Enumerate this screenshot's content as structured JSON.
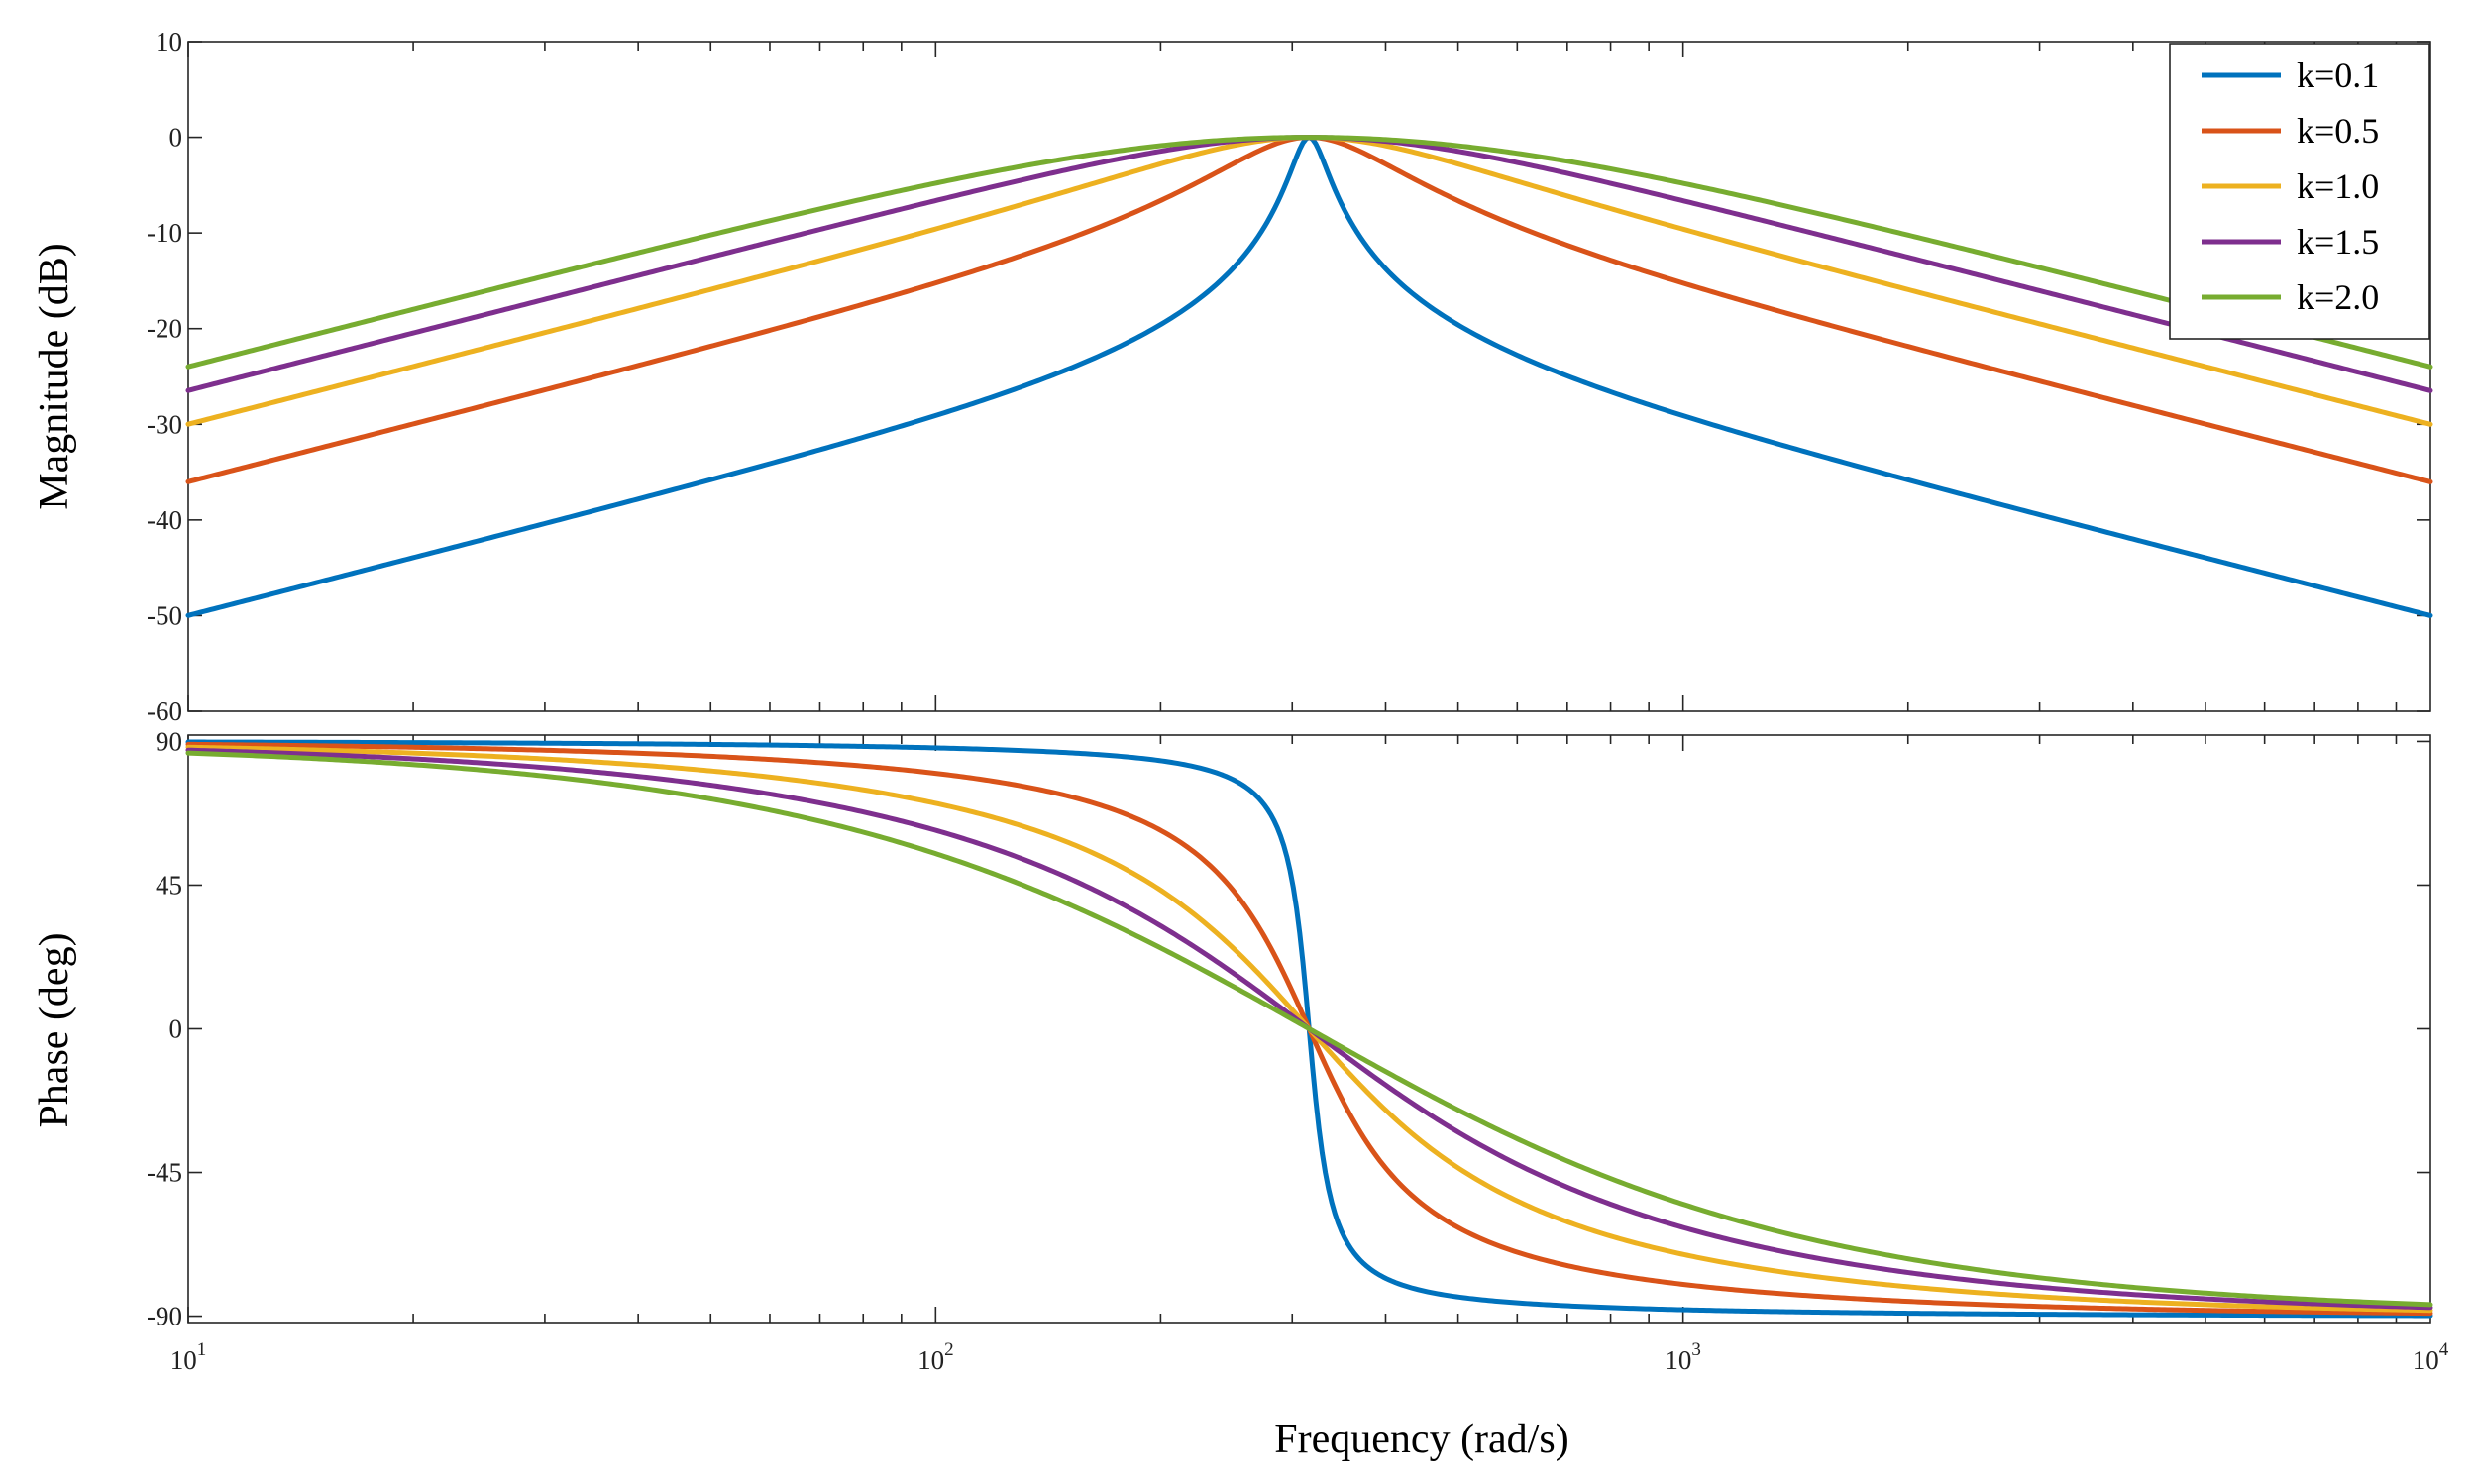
{
  "chart_data": [
    {
      "type": "line",
      "title": "",
      "xlabel": "",
      "ylabel": "Magnitude (dB)",
      "xscale": "log",
      "xlim": [
        10,
        10000
      ],
      "ylim": [
        -60,
        10
      ],
      "yticks": [
        10,
        0,
        -10,
        -20,
        -30,
        -40,
        -50,
        -60
      ],
      "ytick_labels": [
        "10",
        "0",
        "-10",
        "-20",
        "-30",
        "-40",
        "-50",
        "-60"
      ],
      "grid": false,
      "legend_position": "top-right",
      "resonance_frequency": 316,
      "series": [
        {
          "name": "k=0.1",
          "color": "#0072BD",
          "k": 0.1,
          "values_at_xlim": [
            -50,
            -50
          ]
        },
        {
          "name": "k=0.5",
          "color": "#D95319",
          "k": 0.5,
          "values_at_xlim": [
            -36,
            -36
          ]
        },
        {
          "name": "k=1.0",
          "color": "#EDB120",
          "k": 1.0,
          "values_at_xlim": [
            -30,
            -30
          ]
        },
        {
          "name": "k=1.5",
          "color": "#7E2F8E",
          "k": 1.5,
          "values_at_xlim": [
            -26.5,
            -26.5
          ]
        },
        {
          "name": "k=2.0",
          "color": "#77AC30",
          "k": 2.0,
          "values_at_xlim": [
            -24,
            -24
          ]
        }
      ]
    },
    {
      "type": "line",
      "title": "",
      "xlabel": "Frequency  (rad/s)",
      "ylabel": "Phase (deg)",
      "xscale": "log",
      "xlim": [
        10,
        10000
      ],
      "ylim": [
        -92,
        92
      ],
      "yticks": [
        90,
        45,
        0,
        -45,
        -90
      ],
      "ytick_labels": [
        "90",
        "45",
        "0",
        "-45",
        "-90"
      ],
      "xticks": [
        10,
        100,
        1000,
        10000
      ],
      "xtick_labels": [
        {
          "base": "10",
          "exp": "1"
        },
        {
          "base": "10",
          "exp": "2"
        },
        {
          "base": "10",
          "exp": "3"
        },
        {
          "base": "10",
          "exp": "4"
        }
      ],
      "grid": false,
      "resonance_frequency": 316,
      "series": [
        {
          "name": "k=0.1",
          "color": "#0072BD",
          "k": 0.1,
          "values_at_xlim": [
            89.8,
            -89.8
          ]
        },
        {
          "name": "k=0.5",
          "color": "#D95319",
          "k": 0.5,
          "values_at_xlim": [
            89.1,
            -89.1
          ]
        },
        {
          "name": "k=1.0",
          "color": "#EDB120",
          "k": 1.0,
          "values_at_xlim": [
            88.2,
            -88.2
          ]
        },
        {
          "name": "k=1.5",
          "color": "#7E2F8E",
          "k": 1.5,
          "values_at_xlim": [
            87.3,
            -87.3
          ]
        },
        {
          "name": "k=2.0",
          "color": "#77AC30",
          "k": 2.0,
          "values_at_xlim": [
            86.4,
            -86.4
          ]
        }
      ]
    }
  ]
}
